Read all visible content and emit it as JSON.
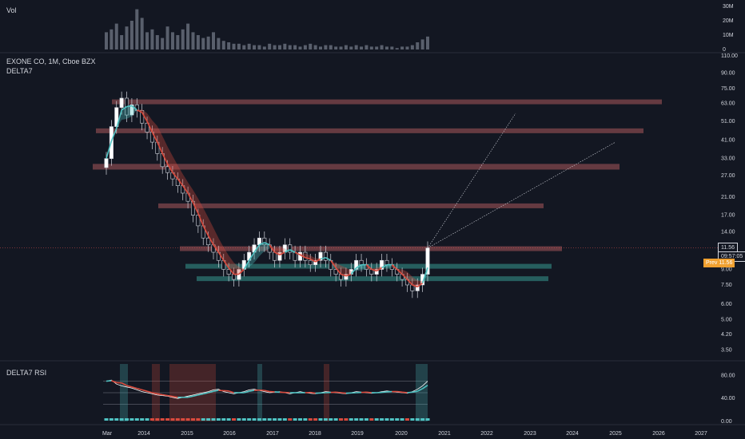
{
  "header": {
    "vol_label": "Vol",
    "symbol_title": "EXONE CO, 1M, Cboe BZX",
    "indicator_label": "DELTA7",
    "rsi_label": "DELTA7 RSI"
  },
  "price_markers": {
    "last_price": "11.56",
    "countdown": "09:57:05",
    "orange_tag": "Prev 11.56"
  },
  "colors": {
    "background": "#131722",
    "bull": "#4fc3c3",
    "bear": "#d94a3d",
    "zone_bear": "#e07070",
    "zone_bull": "#3fb6a8",
    "marker_orange": "#f0a030"
  },
  "chart_data": [
    {
      "type": "bar",
      "name": "volume",
      "y_ticks": [
        "30M",
        "20M",
        "10M",
        "0"
      ],
      "ylim": [
        0,
        30
      ],
      "values": [
        12,
        14,
        18,
        10,
        16,
        20,
        28,
        22,
        12,
        14,
        10,
        8,
        16,
        12,
        10,
        14,
        18,
        12,
        10,
        8,
        9,
        12,
        8,
        6,
        5,
        4,
        4,
        3,
        4,
        3,
        3,
        2,
        4,
        3,
        3,
        4,
        3,
        3,
        2,
        3,
        4,
        3,
        2,
        3,
        3,
        2,
        2,
        3,
        2,
        3,
        2,
        3,
        2,
        2,
        3,
        2,
        2,
        1,
        2,
        2,
        3,
        5,
        7,
        9
      ]
    },
    {
      "type": "line",
      "name": "price",
      "scale": "log",
      "ylim": [
        3.2,
        110
      ],
      "y_ticks": [
        "110.00",
        "90.00",
        "75.00",
        "63.00",
        "51.00",
        "41.00",
        "33.00",
        "27.00",
        "21.00",
        "17.00",
        "14.00",
        "11.00",
        "9.00",
        "7.50",
        "6.00",
        "5.00",
        "4.20",
        "3.50"
      ],
      "x_ticks": [
        "Mar",
        "2014",
        "2015",
        "2016",
        "2017",
        "2018",
        "2019",
        "2020",
        "2021",
        "2022",
        "2023",
        "2024",
        "2025",
        "2026",
        "2027"
      ],
      "close": [
        33,
        48,
        60,
        67,
        55,
        62,
        58,
        50,
        45,
        40,
        35,
        30,
        28,
        26,
        24,
        22,
        20,
        17,
        15,
        13,
        12,
        11,
        10,
        9,
        8.5,
        8,
        9,
        10,
        11,
        12,
        13,
        12,
        11,
        10,
        11,
        12,
        11,
        10,
        11,
        10,
        9.5,
        10,
        11,
        10,
        9,
        8.5,
        8,
        8.5,
        9,
        10,
        9.5,
        9,
        8.5,
        9,
        10,
        9.5,
        9,
        8.5,
        8,
        7.5,
        7,
        7.5,
        8.5,
        11.56
      ],
      "zones": [
        {
          "low": 63,
          "high": 66
        },
        {
          "low": 45,
          "high": 47
        },
        {
          "low": 29,
          "high": 31
        },
        {
          "low": 18.5,
          "high": 19.5
        },
        {
          "low": 11.2,
          "high": 11.8
        },
        {
          "low": 9.2,
          "high": 9.6
        },
        {
          "low": 8,
          "high": 8.3
        }
      ]
    },
    {
      "type": "line",
      "name": "rsi",
      "y_ticks": [
        "80.00",
        "40.00",
        "0.00"
      ],
      "ylim": [
        0,
        100
      ],
      "values": [
        70,
        72,
        65,
        62,
        60,
        58,
        55,
        52,
        50,
        48,
        46,
        45,
        44,
        42,
        40,
        42,
        44,
        46,
        48,
        50,
        52,
        55,
        56,
        52,
        50,
        48,
        50,
        52,
        55,
        56,
        54,
        52,
        50,
        51,
        52,
        50,
        48,
        50,
        52,
        50,
        49,
        48,
        50,
        52,
        51,
        50,
        49,
        48,
        50,
        52,
        51,
        50,
        49,
        50,
        52,
        53,
        52,
        51,
        50,
        49,
        52,
        56,
        62,
        70
      ]
    }
  ]
}
